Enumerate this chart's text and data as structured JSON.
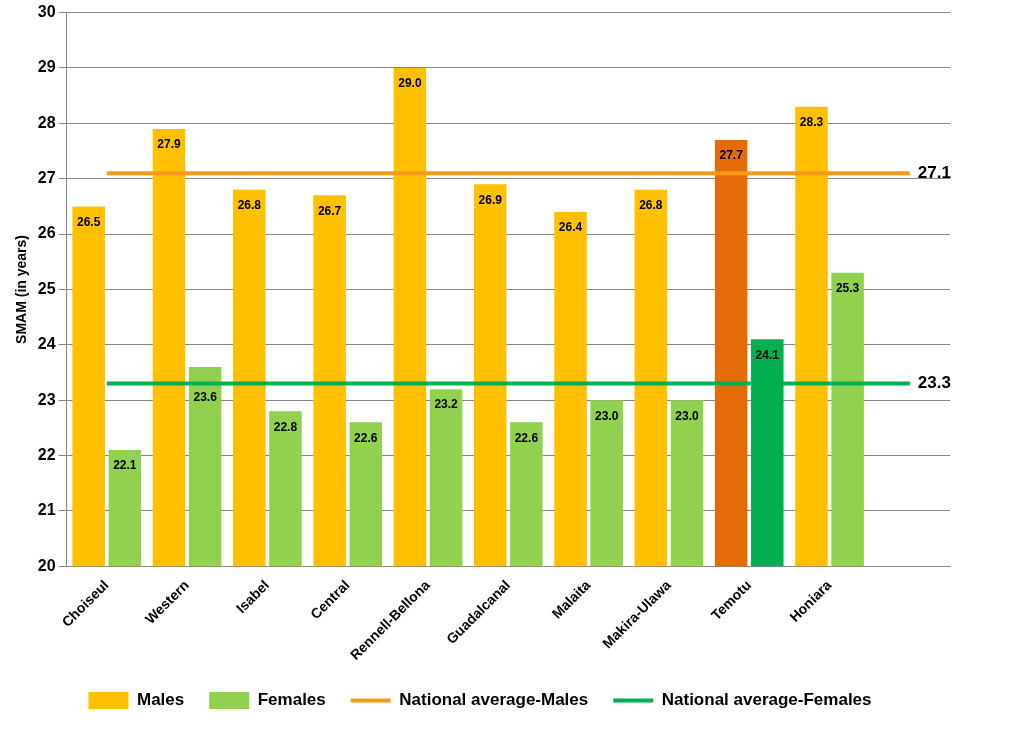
{
  "chart_data": {
    "type": "bar",
    "ylabel": "SMAM (in years)",
    "categories": [
      "Choiseul",
      "Western",
      "Isabel",
      "Central",
      "Rennell-Bellona",
      "Guadalcanal",
      "Malaita",
      "Makira-Ulawa",
      "Temotu",
      "Honiara",
      null
    ],
    "series": [
      {
        "name": "Males",
        "color": "#ffc000",
        "colors": [
          "#ffc000",
          "#ffc000",
          "#ffc000",
          "#ffc000",
          "#ffc000",
          "#ffc000",
          "#ffc000",
          "#ffc000",
          "#e36c09",
          "#ffc000",
          "#ffc000"
        ],
        "values": [
          26.5,
          27.9,
          26.8,
          26.7,
          29.0,
          26.9,
          26.4,
          26.8,
          27.7,
          28.3,
          null
        ],
        "value_labels": [
          "26.5",
          "27.9",
          "26.8",
          "26.7",
          "29.0",
          "26.9",
          "26.4",
          "26.8",
          "27.7",
          "28.3",
          null
        ]
      },
      {
        "name": "Females",
        "color": "#92d050",
        "colors": [
          "#92d050",
          "#92d050",
          "#92d050",
          "#92d050",
          "#92d050",
          "#92d050",
          "#92d050",
          "#92d050",
          "#00b050",
          "#92d050",
          "#92d050"
        ],
        "values": [
          22.1,
          23.6,
          22.8,
          22.6,
          23.2,
          22.6,
          23.0,
          23.0,
          24.1,
          25.3,
          null
        ],
        "value_labels": [
          "22.1",
          "23.6",
          "22.8",
          "22.6",
          "23.2",
          "22.6",
          "23.0",
          "23.0",
          "24.1",
          "25.3",
          null
        ]
      },
      {
        "name": "National average-Males",
        "type": "line",
        "color": "#f79a1b",
        "values": [
          27.1,
          27.1,
          27.1,
          27.1,
          27.1,
          27.1,
          27.1,
          27.1,
          27.1,
          27.1,
          27.1
        ],
        "value_labels": [
          null,
          null,
          null,
          null,
          null,
          null,
          null,
          null,
          null,
          null,
          "27.1"
        ]
      },
      {
        "name": "National average-Females",
        "type": "line",
        "color": "#00b050",
        "values": [
          23.3,
          23.3,
          23.3,
          23.3,
          23.3,
          23.3,
          23.3,
          23.3,
          23.3,
          23.3,
          23.3
        ],
        "value_labels": [
          null,
          null,
          null,
          null,
          null,
          null,
          null,
          null,
          null,
          null,
          "23.3"
        ]
      }
    ],
    "ylim": [
      20,
      30
    ],
    "yticks": [
      20,
      21,
      22,
      23,
      24,
      25,
      26,
      27,
      28,
      29,
      30
    ],
    "grid": "y",
    "legend": "bottom",
    "marker": "none",
    "line_style": "solid"
  }
}
